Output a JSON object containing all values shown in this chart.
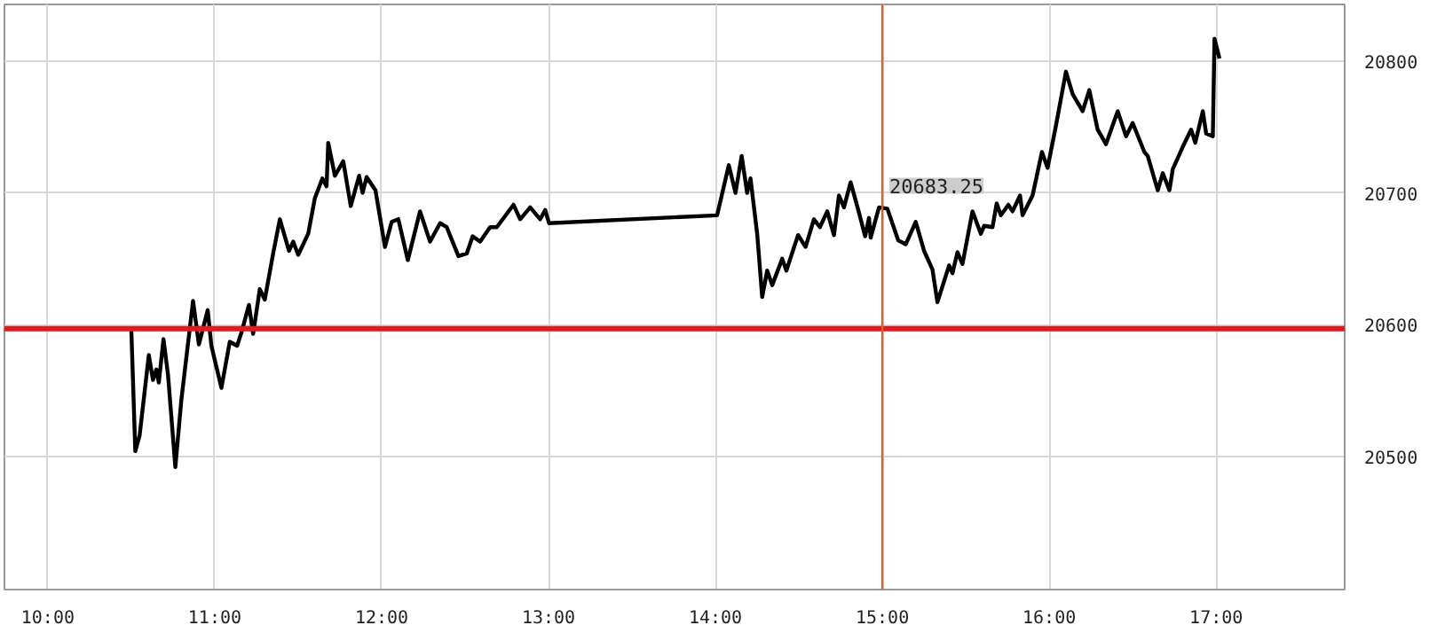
{
  "chart_data": {
    "type": "line",
    "x": [
      10.5,
      10.524,
      10.55,
      10.605,
      10.63,
      10.65,
      10.665,
      10.693,
      10.72,
      10.764,
      10.8,
      10.87,
      10.905,
      10.958,
      10.98,
      11.04,
      11.09,
      11.134,
      11.16,
      11.205,
      11.23,
      11.27,
      11.3,
      11.35,
      11.39,
      11.445,
      11.47,
      11.5,
      11.56,
      11.6,
      11.645,
      11.67,
      11.68,
      11.72,
      11.77,
      11.815,
      11.865,
      11.886,
      11.91,
      11.963,
      12.02,
      12.06,
      12.1,
      12.157,
      12.23,
      12.29,
      12.35,
      12.39,
      12.46,
      12.51,
      12.545,
      12.59,
      12.65,
      12.69,
      12.79,
      12.83,
      12.89,
      12.95,
      12.98,
      13.003,
      14.01,
      14.08,
      14.12,
      14.157,
      14.19,
      14.21,
      14.25,
      14.28,
      14.31,
      14.34,
      14.4,
      14.425,
      14.495,
      14.54,
      14.59,
      14.626,
      14.67,
      14.71,
      14.74,
      14.77,
      14.81,
      14.86,
      14.897,
      14.92,
      14.93,
      14.98,
      15.03,
      15.095,
      15.14,
      15.2,
      15.25,
      15.3,
      15.33,
      15.4,
      15.42,
      15.45,
      15.48,
      15.54,
      15.59,
      15.61,
      15.66,
      15.685,
      15.71,
      15.755,
      15.78,
      15.825,
      15.84,
      15.9,
      15.956,
      15.99,
      16.04,
      16.1,
      16.14,
      16.2,
      16.24,
      16.29,
      16.34,
      16.41,
      16.46,
      16.5,
      16.57,
      16.59,
      16.65,
      16.68,
      16.72,
      16.74,
      16.8,
      16.85,
      16.875,
      16.92,
      16.94,
      16.98,
      16.99,
      17.02
    ],
    "series": [
      {
        "color": "#000000",
        "values": [
          20597,
          20504,
          20516,
          20577,
          20558,
          20566,
          20556,
          20589,
          20562,
          20492,
          20543,
          20618,
          20585,
          20611,
          20584,
          20552,
          20587,
          20584,
          20594,
          20615,
          20593,
          20627,
          20619,
          20654,
          20680,
          20656,
          20663,
          20653,
          20669,
          20696,
          20711,
          20705,
          20738,
          20713,
          20724,
          20690,
          20713,
          20700,
          20712,
          20702,
          20659,
          20678,
          20680,
          20649,
          20686,
          20663,
          20677,
          20674,
          20652,
          20654,
          20667,
          20663,
          20674,
          20674,
          20691,
          20680,
          20689,
          20680,
          20687,
          20677,
          20683,
          20721,
          20700,
          20728,
          20700,
          20711,
          20669,
          20621,
          20641,
          20630,
          20650,
          20641,
          20668,
          20659,
          20680,
          20674,
          20686,
          20668,
          20698,
          20689,
          20708,
          20685,
          20667,
          20681,
          20666,
          20689,
          20688,
          20664,
          20661,
          20678,
          20656,
          20642,
          20617,
          20645,
          20639,
          20655,
          20646,
          20686,
          20669,
          20675,
          20674,
          20692,
          20683,
          20691,
          20686,
          20698,
          20683,
          20698,
          20731,
          20719,
          20751,
          20792,
          20775,
          20762,
          20778,
          20748,
          20737,
          20762,
          20743,
          20753,
          20731,
          20728,
          20702,
          20715,
          20702,
          20718,
          20735,
          20748,
          20738,
          20762,
          20745,
          20743,
          20817,
          20802
        ]
      }
    ],
    "xlim": [
      9.74,
      17.77
    ],
    "ylim": [
      20399,
      20843
    ],
    "xticks": [
      {
        "value": 10,
        "label": "10:00"
      },
      {
        "value": 11,
        "label": "11:00"
      },
      {
        "value": 12,
        "label": "12:00"
      },
      {
        "value": 13,
        "label": "13:00"
      },
      {
        "value": 14,
        "label": "14:00"
      },
      {
        "value": 15,
        "label": "15:00"
      },
      {
        "value": 16,
        "label": "16:00"
      },
      {
        "value": 17,
        "label": "17:00"
      }
    ],
    "yticks": [
      20500,
      20600,
      20700,
      20800
    ],
    "grid": true,
    "marker": "none",
    "line_style": "solid",
    "ref_lines": [
      {
        "axis": "y",
        "value": 20597,
        "color": "#e41a1a"
      },
      {
        "axis": "x",
        "value": 15,
        "color": "#e0602a"
      }
    ],
    "annotations": [
      {
        "text": "20683.25",
        "x": 15,
        "y": 20683.25
      }
    ]
  }
}
